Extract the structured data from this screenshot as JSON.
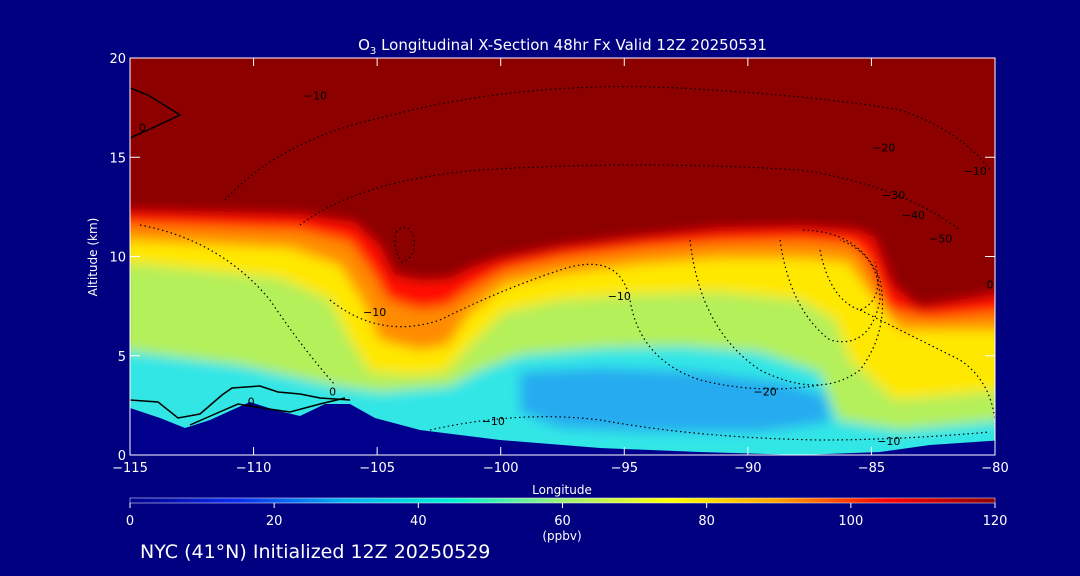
{
  "chart_data": {
    "type": "heatmap",
    "title": "O3 Longitudinal X-Section 48hr  Fx Valid 12Z 20250531",
    "title_prefix": "O",
    "title_sub": "3",
    "title_rest": " Longitudinal X-Section 48hr  Fx Valid 12Z 20250531",
    "xlabel": "Longitude",
    "ylabel": "Altitude (km)",
    "xlim": [
      -115,
      -80
    ],
    "ylim": [
      0,
      20
    ],
    "x_ticks": [
      -115,
      -110,
      -105,
      -100,
      -95,
      -90,
      -85,
      -80
    ],
    "x_tick_labels": [
      "−115",
      "−110",
      "−105",
      "−100",
      "−95",
      "−90",
      "−85",
      "−80"
    ],
    "y_ticks": [
      0,
      5,
      10,
      15,
      20
    ],
    "y_tick_labels": [
      "0",
      "5",
      "10",
      "15",
      "20"
    ],
    "colorbar": {
      "min": 0,
      "max": 120,
      "ticks": [
        0,
        20,
        40,
        60,
        80,
        100,
        120
      ],
      "tick_labels": [
        "0",
        "20",
        "40",
        "60",
        "80",
        "100",
        "120"
      ],
      "units": "(ppbv)",
      "colors": [
        "#00008c",
        "#0a2cf0",
        "#00b4f0",
        "#00f0d2",
        "#a0f07a",
        "#ffff00",
        "#ffa000",
        "#ff0000",
        "#8c0000"
      ]
    },
    "tropopause_km": [
      [
        -115,
        12.3
      ],
      [
        -113,
        12.3
      ],
      [
        -111,
        12.1
      ],
      [
        -109,
        12.0
      ],
      [
        -107,
        11.8
      ],
      [
        -105.5,
        11.4
      ],
      [
        -104,
        8.5
      ],
      [
        -102.5,
        7.6
      ],
      [
        -101,
        8.7
      ],
      [
        -99,
        9.7
      ],
      [
        -97,
        10.4
      ],
      [
        -95,
        10.9
      ],
      [
        -93,
        11.2
      ],
      [
        -91,
        11.5
      ],
      [
        -89,
        11.6
      ],
      [
        -86,
        11.3
      ],
      [
        -85,
        10.9
      ],
      [
        -84,
        8.0
      ],
      [
        -83,
        7.4
      ],
      [
        -81,
        7.9
      ],
      [
        -80,
        8.2
      ]
    ],
    "contour_labels": [
      {
        "text": "0",
        "lon": -114.5,
        "alt": 16.3
      },
      {
        "text": "−10",
        "lon": -107.5,
        "alt": 17.9
      },
      {
        "text": "−20",
        "lon": -84.5,
        "alt": 15.3
      },
      {
        "text": "−10",
        "lon": -80.8,
        "alt": 14.1
      },
      {
        "text": "−30",
        "lon": -84.1,
        "alt": 12.9
      },
      {
        "text": "−40",
        "lon": -83.3,
        "alt": 11.9
      },
      {
        "text": "−50",
        "lon": -82.2,
        "alt": 10.7
      },
      {
        "text": "0",
        "lon": -80.2,
        "alt": 8.4
      },
      {
        "text": "−10",
        "lon": -105.1,
        "alt": 7.0
      },
      {
        "text": "−10",
        "lon": -95.2,
        "alt": 7.8
      },
      {
        "text": "0",
        "lon": -106.8,
        "alt": 3.0
      },
      {
        "text": "0",
        "lon": -110.1,
        "alt": 2.5
      },
      {
        "text": "−20",
        "lon": -89.3,
        "alt": 3.0
      },
      {
        "text": "−10",
        "lon": -100.3,
        "alt": 1.5
      },
      {
        "text": "−10",
        "lon": -84.3,
        "alt": 0.5
      }
    ]
  },
  "footer": "NYC (41°N) Initialized 12Z 20250529"
}
